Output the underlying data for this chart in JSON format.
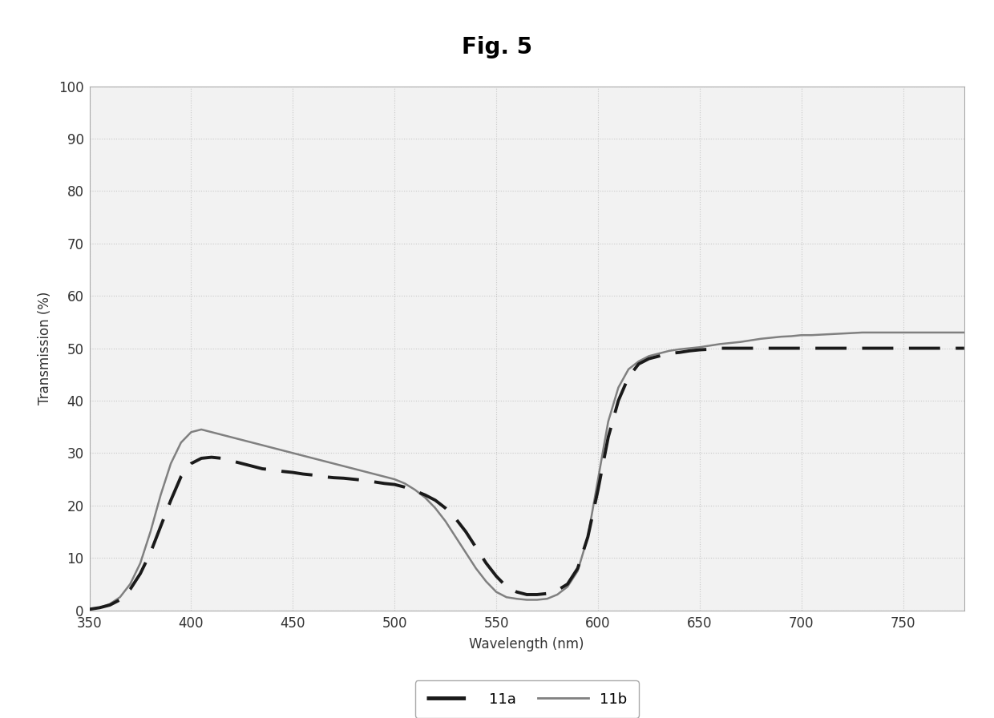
{
  "title": "Fig. 5",
  "xlabel": "Wavelength (nm)",
  "ylabel": "Transmission (%)",
  "xlim": [
    350,
    780
  ],
  "ylim": [
    0,
    100
  ],
  "xticks": [
    350,
    400,
    450,
    500,
    550,
    600,
    650,
    700,
    750
  ],
  "yticks": [
    0,
    10,
    20,
    30,
    40,
    50,
    60,
    70,
    80,
    90,
    100
  ],
  "background_color": "#ffffff",
  "plot_bg_color": "#f2f2f2",
  "grid_color": "#c8c8c8",
  "line_11a_color": "#1a1a1a",
  "line_11b_color": "#808080",
  "curve_11a": {
    "wavelengths": [
      350,
      355,
      360,
      365,
      370,
      375,
      380,
      385,
      390,
      395,
      400,
      405,
      410,
      415,
      420,
      425,
      430,
      435,
      440,
      445,
      450,
      455,
      460,
      465,
      470,
      475,
      480,
      485,
      490,
      495,
      500,
      505,
      510,
      515,
      520,
      525,
      530,
      535,
      540,
      545,
      550,
      555,
      560,
      565,
      570,
      575,
      580,
      585,
      590,
      595,
      600,
      605,
      610,
      615,
      620,
      625,
      630,
      635,
      640,
      645,
      650,
      655,
      660,
      665,
      670,
      675,
      680,
      685,
      690,
      695,
      700,
      705,
      710,
      715,
      720,
      725,
      730,
      735,
      740,
      745,
      750,
      755,
      760,
      765,
      770,
      775,
      780
    ],
    "values": [
      0.2,
      0.5,
      1.0,
      2.0,
      4.0,
      7.0,
      11.0,
      16.0,
      21.0,
      25.5,
      28.0,
      29.0,
      29.2,
      29.0,
      28.5,
      28.0,
      27.5,
      27.0,
      26.8,
      26.5,
      26.3,
      26.0,
      25.8,
      25.5,
      25.3,
      25.2,
      25.0,
      24.8,
      24.5,
      24.2,
      24.0,
      23.5,
      22.8,
      22.0,
      21.0,
      19.5,
      17.5,
      15.0,
      12.0,
      9.0,
      6.5,
      4.5,
      3.5,
      3.0,
      3.0,
      3.2,
      3.8,
      5.0,
      8.0,
      14.0,
      23.0,
      33.0,
      40.0,
      44.5,
      47.0,
      48.0,
      48.5,
      49.0,
      49.2,
      49.5,
      49.7,
      49.8,
      50.0,
      50.0,
      50.0,
      50.0,
      50.0,
      50.0,
      50.0,
      50.0,
      50.0,
      50.0,
      50.0,
      50.0,
      50.0,
      50.0,
      50.0,
      50.0,
      50.0,
      50.0,
      50.0,
      50.0,
      50.0,
      50.0,
      50.0,
      50.0,
      50.0
    ]
  },
  "curve_11b": {
    "wavelengths": [
      350,
      355,
      360,
      365,
      370,
      375,
      380,
      385,
      390,
      395,
      400,
      405,
      410,
      415,
      420,
      425,
      430,
      435,
      440,
      445,
      450,
      455,
      460,
      465,
      470,
      475,
      480,
      485,
      490,
      495,
      500,
      505,
      510,
      515,
      520,
      525,
      530,
      535,
      540,
      545,
      550,
      555,
      560,
      565,
      570,
      575,
      580,
      585,
      590,
      595,
      600,
      605,
      610,
      615,
      620,
      625,
      630,
      635,
      640,
      645,
      650,
      655,
      660,
      665,
      670,
      675,
      680,
      685,
      690,
      695,
      700,
      705,
      710,
      715,
      720,
      725,
      730,
      735,
      740,
      745,
      750,
      755,
      760,
      765,
      770,
      775,
      780
    ],
    "values": [
      0.2,
      0.5,
      1.2,
      2.5,
      5.0,
      9.0,
      15.0,
      22.0,
      28.0,
      32.0,
      34.0,
      34.5,
      34.0,
      33.5,
      33.0,
      32.5,
      32.0,
      31.5,
      31.0,
      30.5,
      30.0,
      29.5,
      29.0,
      28.5,
      28.0,
      27.5,
      27.0,
      26.5,
      26.0,
      25.5,
      25.0,
      24.2,
      23.0,
      21.5,
      19.5,
      17.0,
      14.0,
      11.0,
      8.0,
      5.5,
      3.5,
      2.5,
      2.2,
      2.0,
      2.0,
      2.2,
      3.0,
      4.5,
      7.5,
      14.0,
      25.0,
      36.0,
      42.5,
      46.0,
      47.5,
      48.5,
      49.0,
      49.5,
      49.8,
      50.0,
      50.2,
      50.5,
      50.8,
      51.0,
      51.2,
      51.5,
      51.8,
      52.0,
      52.2,
      52.3,
      52.5,
      52.5,
      52.6,
      52.7,
      52.8,
      52.9,
      53.0,
      53.0,
      53.0,
      53.0,
      53.0,
      53.0,
      53.0,
      53.0,
      53.0,
      53.0,
      53.0
    ]
  }
}
